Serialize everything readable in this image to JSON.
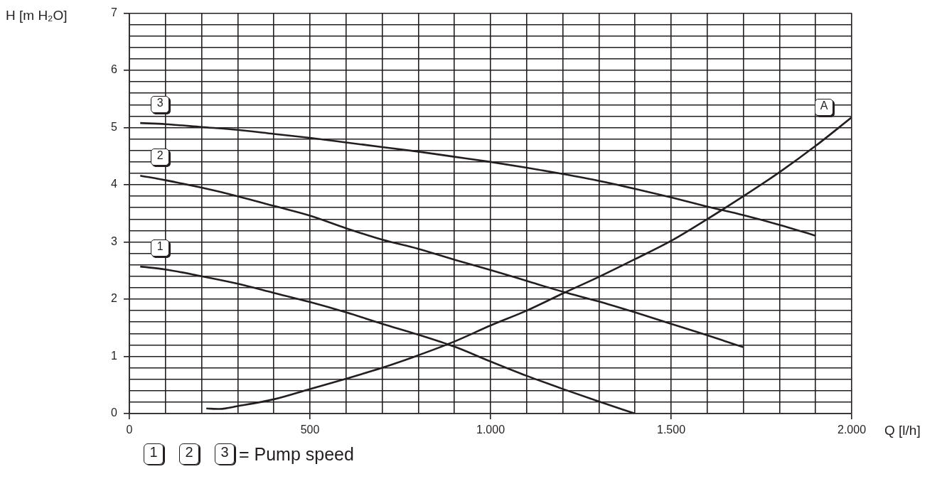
{
  "chart_data": {
    "type": "line",
    "xlabel": "Q [l/h]",
    "ylabel": "H [m H₂O]",
    "xlim": [
      0,
      2000
    ],
    "ylim": [
      0,
      7
    ],
    "xticks": [
      0,
      {
        "value": 100,
        "label": null
      },
      {
        "value": 200,
        "label": null
      },
      {
        "value": 300,
        "label": null
      },
      {
        "value": 400,
        "label": null
      },
      500,
      {
        "value": 600,
        "label": null
      },
      {
        "value": 700,
        "label": null
      },
      {
        "value": 800,
        "label": null
      },
      {
        "value": 900,
        "label": null
      },
      {
        "value": 1000,
        "label": "1.000"
      },
      {
        "value": 1100,
        "label": null
      },
      {
        "value": 1200,
        "label": null
      },
      {
        "value": 1300,
        "label": null
      },
      {
        "value": 1400,
        "label": null
      },
      {
        "value": 1500,
        "label": "1.500"
      },
      {
        "value": 1600,
        "label": null
      },
      {
        "value": 1700,
        "label": null
      },
      {
        "value": 1800,
        "label": null
      },
      {
        "value": 1900,
        "label": null
      },
      {
        "value": 2000,
        "label": "2.000"
      }
    ],
    "yticks": [
      0,
      {
        "value": 0.2,
        "label": null
      },
      {
        "value": 0.4,
        "label": null
      },
      {
        "value": 0.6,
        "label": null
      },
      {
        "value": 0.8,
        "label": null
      },
      1,
      {
        "value": 1.2,
        "label": null
      },
      {
        "value": 1.4,
        "label": null
      },
      {
        "value": 1.6,
        "label": null
      },
      {
        "value": 1.8,
        "label": null
      },
      2,
      {
        "value": 2.2,
        "label": null
      },
      {
        "value": 2.4,
        "label": null
      },
      {
        "value": 2.6,
        "label": null
      },
      {
        "value": 2.8,
        "label": null
      },
      3,
      {
        "value": 3.2,
        "label": null
      },
      {
        "value": 3.4,
        "label": null
      },
      {
        "value": 3.6,
        "label": null
      },
      {
        "value": 3.8,
        "label": null
      },
      4,
      {
        "value": 4.2,
        "label": null
      },
      {
        "value": 4.4,
        "label": null
      },
      {
        "value": 4.6,
        "label": null
      },
      {
        "value": 4.8,
        "label": null
      },
      5,
      {
        "value": 5.2,
        "label": null
      },
      {
        "value": 5.4,
        "label": null
      },
      {
        "value": 5.6,
        "label": null
      },
      {
        "value": 5.8,
        "label": null
      },
      6,
      {
        "value": 6.2,
        "label": null
      },
      {
        "value": 6.4,
        "label": null
      },
      {
        "value": 6.6,
        "label": null
      },
      {
        "value": 6.8,
        "label": null
      },
      7
    ],
    "grid": true,
    "legend": "bottom left",
    "legend_title": "= Pump speed",
    "series": [
      {
        "name": "1",
        "color": "#231f20",
        "x": [
          30,
          100,
          200,
          300,
          400,
          500,
          600,
          700,
          800,
          900,
          1000,
          1100,
          1200,
          1300,
          1400
        ],
        "values": [
          2.57,
          2.52,
          2.4,
          2.27,
          2.11,
          1.95,
          1.77,
          1.57,
          1.38,
          1.17,
          0.91,
          0.66,
          0.43,
          0.21,
          0
        ]
      },
      {
        "name": "2",
        "color": "#231f20",
        "x": [
          30,
          100,
          200,
          300,
          400,
          500,
          600,
          700,
          800,
          900,
          1000,
          1100,
          1200,
          1300,
          1400,
          1500,
          1600,
          1700
        ],
        "values": [
          4.16,
          4.08,
          3.95,
          3.8,
          3.63,
          3.46,
          3.24,
          3.04,
          2.88,
          2.69,
          2.51,
          2.32,
          2.13,
          1.96,
          1.77,
          1.57,
          1.37,
          1.16
        ]
      },
      {
        "name": "3",
        "color": "#231f20",
        "x": [
          30,
          100,
          200,
          300,
          400,
          500,
          600,
          700,
          800,
          900,
          1000,
          1100,
          1200,
          1300,
          1400,
          1500,
          1600,
          1700,
          1800,
          1900
        ],
        "values": [
          5.08,
          5.06,
          5.01,
          4.96,
          4.89,
          4.82,
          4.74,
          4.66,
          4.58,
          4.49,
          4.4,
          4.3,
          4.19,
          4.07,
          3.93,
          3.78,
          3.62,
          3.47,
          3.3,
          3.11
        ]
      },
      {
        "name": "A",
        "color": "#231f20",
        "x": [
          213,
          250,
          300,
          400,
          500,
          600,
          700,
          800,
          900,
          1000,
          1100,
          1200,
          1300,
          1400,
          1500,
          1600,
          1700,
          1800,
          1900,
          2000
        ],
        "values": [
          0.09,
          0.08,
          0.13,
          0.25,
          0.43,
          0.61,
          0.8,
          1.02,
          1.26,
          1.54,
          1.8,
          2.1,
          2.39,
          2.7,
          3.02,
          3.4,
          3.8,
          4.22,
          4.68,
          5.18
        ]
      }
    ]
  }
}
